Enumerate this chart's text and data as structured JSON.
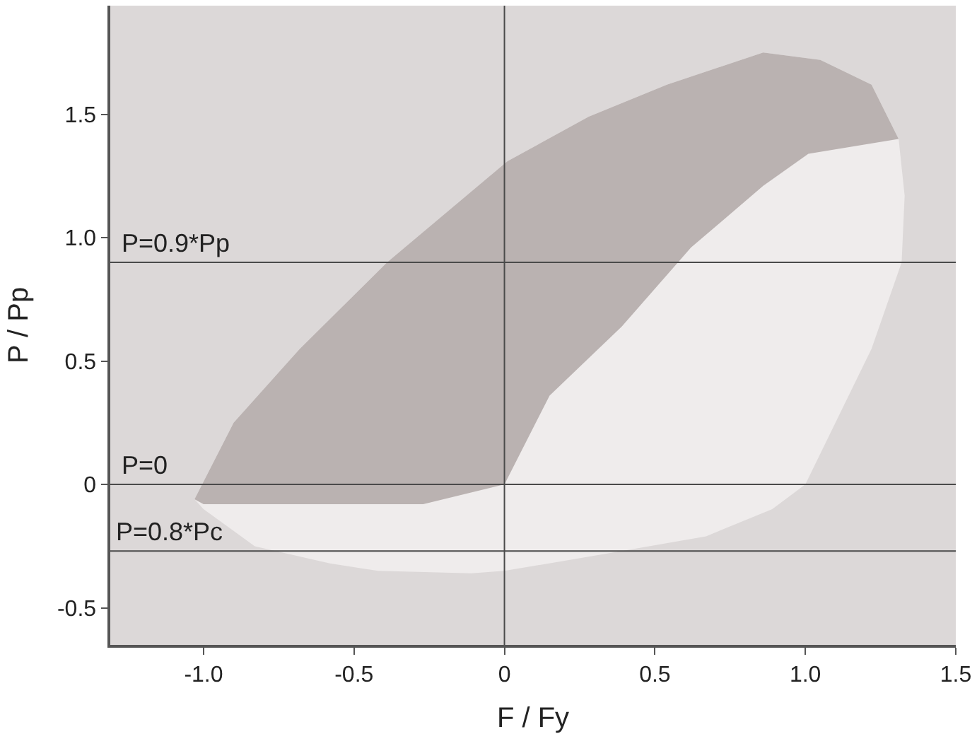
{
  "chart_data": {
    "type": "area",
    "xlabel": "F / Fy",
    "ylabel": "P / Pp",
    "series": [
      {
        "color": "#efecec",
        "x": [
          -1.03,
          -1.0,
          -0.83,
          -0.58,
          -0.42,
          -0.11,
          0,
          0.39,
          0.67,
          0.89,
          1.0,
          1.22,
          1.32,
          1.33,
          1.31,
          1.22,
          1.05,
          0.86,
          0.54,
          0.28,
          0.01,
          -0.39,
          -0.68,
          -0.9,
          -1.03
        ],
        "values": [
          -0.06,
          -0.1,
          -0.25,
          -0.32,
          -0.35,
          -0.36,
          -0.35,
          -0.27,
          -0.21,
          -0.1,
          0,
          0.55,
          0.9,
          1.17,
          1.4,
          1.62,
          1.72,
          1.75,
          1.62,
          1.49,
          1.31,
          0.9,
          0.55,
          0.25,
          -0.06
        ]
      },
      {
        "color": "#bab2b1",
        "x": [
          -1.03,
          -1.0,
          -0.74,
          -0.27,
          0,
          0.15,
          0.39,
          0.62,
          0.86,
          1.01,
          1.31,
          1.22,
          1.05,
          0.86,
          0.54,
          0.28,
          0.01,
          -0.39,
          -0.68,
          -0.9,
          -1.03
        ],
        "values": [
          -0.06,
          -0.08,
          -0.08,
          -0.08,
          0,
          0.36,
          0.64,
          0.96,
          1.21,
          1.34,
          1.4,
          1.62,
          1.72,
          1.75,
          1.62,
          1.49,
          1.31,
          0.9,
          0.55,
          0.25,
          -0.06
        ]
      }
    ],
    "xlim": [
      -1.31,
      1.5
    ],
    "ylim": [
      -0.65,
      1.94
    ],
    "xticks": [
      {
        "value": -1,
        "label": "-1.0"
      },
      -0.5,
      0,
      0.5,
      {
        "value": 1,
        "label": "1.0"
      },
      1.5
    ],
    "yticks": [
      -0.5,
      0,
      0.5,
      {
        "value": 1,
        "label": "1.0"
      },
      1.5
    ],
    "ref_lines": [
      {
        "axis": "x",
        "value": 0,
        "color": "#4a4a4a"
      },
      {
        "axis": "y",
        "value": 0,
        "label": "P=0",
        "color": "#4a4a4a"
      },
      {
        "axis": "y",
        "value": 0.9,
        "label": "P=0.9*Pp",
        "color": "#4a4a4a"
      },
      {
        "axis": "y",
        "value": -0.27,
        "color": "#4a4a4a"
      }
    ],
    "annotations": [
      {
        "text": "P=0.8*Pc",
        "x": -1.3,
        "y": -0.27
      }
    ],
    "grid": false
  }
}
